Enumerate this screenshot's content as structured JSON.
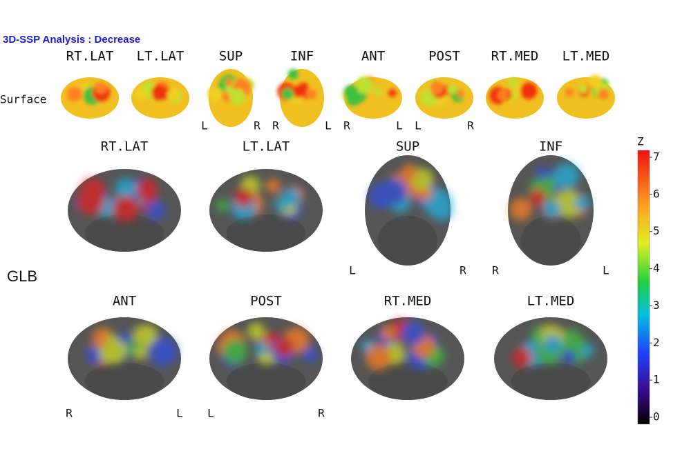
{
  "header": {
    "title": "3D-SSP Analysis :  Decrease"
  },
  "surface": {
    "row_label": "Surface",
    "views": [
      {
        "label": "RT.LAT"
      },
      {
        "label": "LT.LAT"
      },
      {
        "label": "SUP",
        "left": "L",
        "right": "R"
      },
      {
        "label": "INF",
        "left": "R",
        "right": "L"
      },
      {
        "label": "ANT",
        "left": "R",
        "right": "L"
      },
      {
        "label": "POST",
        "left": "L",
        "right": "R"
      },
      {
        "label": "RT.MED"
      },
      {
        "label": "LT.MED"
      }
    ]
  },
  "glb": {
    "row_label": "GLB",
    "views": [
      {
        "label": "RT.LAT"
      },
      {
        "label": "LT.LAT"
      },
      {
        "label": "SUP",
        "left": "L",
        "right": "R"
      },
      {
        "label": "INF",
        "left": "R",
        "right": "L"
      },
      {
        "label": "ANT",
        "left": "R",
        "right": "L"
      },
      {
        "label": "POST",
        "left": "L",
        "right": "R"
      },
      {
        "label": "RT.MED"
      },
      {
        "label": "LT.MED"
      }
    ]
  },
  "colorbar": {
    "label": "Z",
    "range": [
      0,
      7
    ],
    "ticks": [
      0,
      1,
      2,
      3,
      4,
      5,
      6,
      7
    ]
  }
}
